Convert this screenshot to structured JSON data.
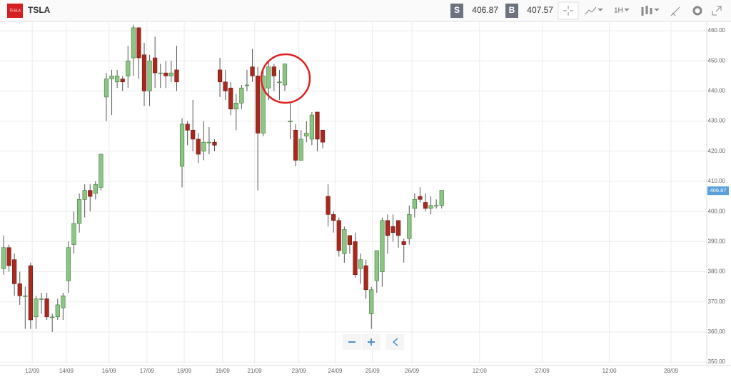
{
  "toolbar": {
    "symbol": "TSLA",
    "logo": "TESLA",
    "sell_label": "S",
    "sell_price": "406.87",
    "buy_label": "B",
    "buy_price": "407.57",
    "timeframe": "1H"
  },
  "chart_data": {
    "type": "candlestick",
    "open": [
      381,
      388,
      384,
      376,
      372,
      382,
      365,
      371,
      371,
      365,
      365,
      368,
      377,
      389,
      396,
      404,
      407,
      406,
      408,
      438,
      444,
      443,
      444,
      445,
      451,
      461,
      452,
      440,
      451,
      446,
      446,
      445,
      447,
      415,
      429,
      427,
      424,
      420,
      423,
      423,
      447,
      443,
      441,
      434,
      436,
      442,
      448,
      445,
      426,
      441,
      448,
      443,
      442,
      430,
      427,
      417,
      425,
      424,
      433,
      427,
      405,
      399,
      397,
      386,
      392,
      390,
      381,
      382,
      366,
      377,
      380,
      397,
      395,
      397,
      390,
      391,
      401,
      405,
      403,
      401,
      402,
      402
    ],
    "close": [
      388,
      382,
      376,
      372,
      372,
      364,
      371,
      371,
      365,
      365,
      369,
      372,
      388,
      396,
      404,
      407,
      405,
      409,
      419,
      444,
      445,
      445,
      443,
      450,
      461,
      451,
      440,
      450,
      446,
      446,
      445,
      446,
      443,
      429,
      427,
      424,
      419,
      423,
      423,
      422,
      443,
      440,
      434,
      436,
      441,
      442,
      445,
      426,
      445,
      448,
      445,
      443,
      449,
      430,
      417,
      424,
      426,
      432,
      424,
      423,
      399,
      397,
      387,
      394,
      389,
      379,
      384,
      374,
      374,
      387,
      397,
      392,
      393,
      392,
      389,
      399,
      404,
      404,
      401,
      402,
      402,
      407
    ],
    "high": [
      392,
      389,
      386,
      380,
      375,
      383,
      372,
      373,
      373,
      366,
      371,
      373,
      390,
      400,
      406,
      409,
      409,
      410,
      419,
      446,
      447,
      447,
      445,
      455,
      462,
      461,
      456,
      452,
      458,
      449,
      450,
      450,
      455,
      431,
      430,
      437,
      426,
      430,
      428,
      424,
      451,
      447,
      443,
      439,
      442,
      447,
      454,
      448,
      447,
      450,
      449,
      447,
      449,
      436,
      429,
      427,
      430,
      433,
      433,
      427,
      409,
      400,
      398,
      395,
      391,
      393,
      386,
      384,
      375,
      387,
      398,
      399,
      399,
      396,
      391,
      402,
      406,
      408,
      406,
      405,
      404,
      407
    ],
    "low": [
      379,
      380,
      372,
      369,
      361,
      361,
      361,
      366,
      364,
      360,
      364,
      364,
      373,
      386,
      393,
      398,
      400,
      404,
      407,
      430,
      432,
      441,
      440,
      441,
      445,
      444,
      435,
      435,
      441,
      441,
      441,
      443,
      440,
      408,
      422,
      420,
      416,
      417,
      419,
      420,
      438,
      437,
      432,
      427,
      434,
      440,
      443,
      407,
      425,
      437,
      440,
      437,
      440,
      424,
      415,
      417,
      423,
      422,
      420,
      421,
      395,
      393,
      385,
      383,
      386,
      378,
      376,
      371,
      361,
      373,
      375,
      386,
      390,
      388,
      383,
      389,
      398,
      403,
      400,
      399,
      401,
      401
    ],
    "up_color": "#8cc585",
    "down_color": "#a82a1f",
    "xlim": [
      -0.66,
      130
    ],
    "xticks": [
      {
        "value": 5.3,
        "label": "12/09"
      },
      {
        "value": 11.6,
        "label": "14/09"
      },
      {
        "value": 19.5,
        "label": "16/09"
      },
      {
        "value": 26.5,
        "label": "17/09"
      },
      {
        "value": 33.4,
        "label": "18/09"
      },
      {
        "value": 40.5,
        "label": "19/09"
      },
      {
        "value": 46.4,
        "label": "21/09"
      },
      {
        "value": 54.6,
        "label": "23/09"
      },
      {
        "value": 61.3,
        "label": "24/09"
      },
      {
        "value": 68.2,
        "label": "25/09"
      },
      {
        "value": 75.5,
        "label": "26/09"
      },
      {
        "value": 88,
        "label": "12:00"
      },
      {
        "value": 99.6,
        "label": "27/09"
      },
      {
        "value": 112,
        "label": "12:00"
      },
      {
        "value": 123.4,
        "label": "28/09"
      }
    ],
    "ylim": [
      349.3,
      463.1
    ],
    "yticks": [
      {
        "value": 350,
        "label": "350.00"
      },
      {
        "value": 360,
        "label": "360.00"
      },
      {
        "value": 370,
        "label": "370.00"
      },
      {
        "value": 380,
        "label": "380.00"
      },
      {
        "value": 390,
        "label": "390.00"
      },
      {
        "value": 400,
        "label": "400.00"
      },
      {
        "value": 410,
        "label": "410.00"
      },
      {
        "value": 420,
        "label": "420.00"
      },
      {
        "value": 430,
        "label": "430.00"
      },
      {
        "value": 440,
        "label": "440.00"
      },
      {
        "value": 450,
        "label": "450.00"
      },
      {
        "value": 460,
        "label": "460.00"
      }
    ],
    "last_price": 406.87,
    "grid": true
  }
}
